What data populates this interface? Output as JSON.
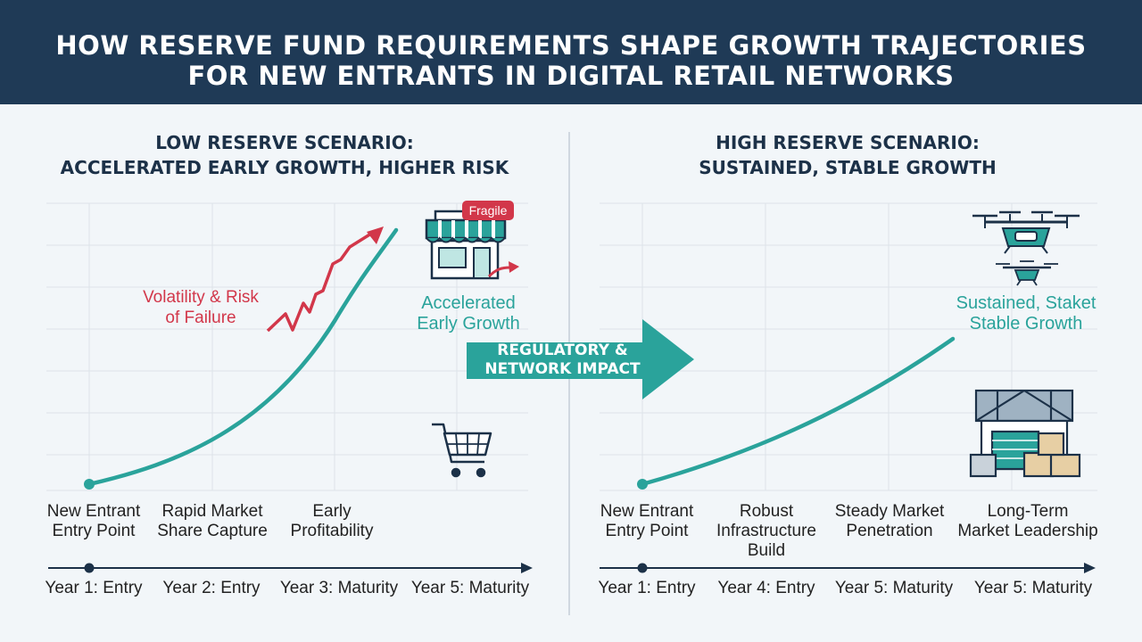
{
  "header": {
    "title_line1": "HOW RESERVE FUND REQUIREMENTS SHAPE GROWTH TRAJECTORIES",
    "title_line2": "FOR NEW ENTRANTS IN DIGITAL RETAIL NETWORKS"
  },
  "left_panel": {
    "heading_line1": "LOW RESERVE SCENARIO:",
    "heading_line2": "ACCELERATED EARLY GROWTH, HIGHER RISK",
    "risk_note_line1": "Volatility & Risk",
    "risk_note_line2": "of Failure",
    "badge": "Fragile",
    "growth_note_line1": "Accelerated",
    "growth_note_line2": "Early Growth",
    "stages": [
      {
        "line1": "New Entrant",
        "line2": "Entry Point"
      },
      {
        "line1": "Rapid Market",
        "line2": "Share Capture"
      },
      {
        "line1": "Early",
        "line2": "Profitability"
      }
    ],
    "timeline": [
      "Year 1: Entry",
      "Year 2: Entry",
      "Year 3: Maturity",
      "Year 5: Maturity"
    ]
  },
  "center": {
    "arrow_line1": "REGULATORY &",
    "arrow_line2": "NETWORK IMPACT"
  },
  "right_panel": {
    "heading_line1": "HIGH RESERVE SCENARIO:",
    "heading_line2": "SUSTAINED, STABLE GROWTH",
    "growth_note_line1": "Sustained, Staket",
    "growth_note_line2": "Stable Growth",
    "stages": [
      {
        "line1": "New Entrant",
        "line2": "Entry Point",
        "line3": ""
      },
      {
        "line1": "Robust",
        "line2": "Infrastructure",
        "line3": "Build"
      },
      {
        "line1": "Steady Market",
        "line2": "Penetration",
        "line3": ""
      },
      {
        "line1": "Long-Term",
        "line2": "Market Leadership",
        "line3": ""
      }
    ],
    "timeline": [
      "Year 1: Entry",
      "Year 4: Entry",
      "Year 5: Maturity",
      "Year 5: Maturity"
    ]
  },
  "colors": {
    "header_bg": "#1f3a56",
    "teal": "#2aa39b",
    "red": "#d2374a",
    "navy": "#1c3148"
  },
  "icons": [
    "storefront-icon",
    "shopping-cart-icon",
    "drone-icon",
    "warehouse-icon"
  ]
}
